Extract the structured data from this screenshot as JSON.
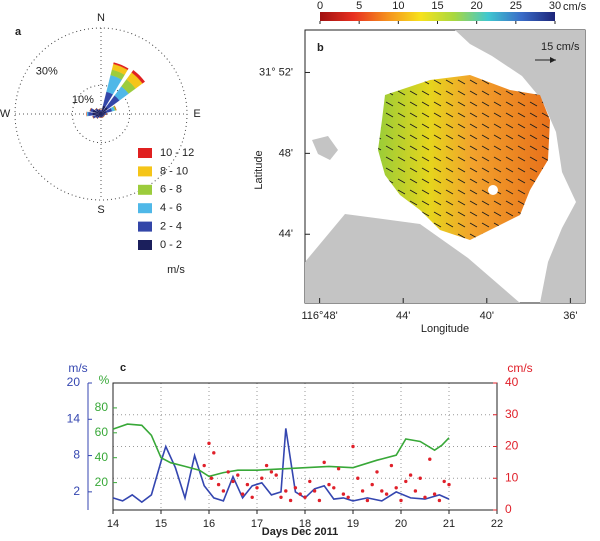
{
  "chart_data": [
    {
      "type": "windrose",
      "title": "a",
      "categories": [
        "N",
        null,
        null,
        null,
        "E",
        null,
        null,
        null,
        "S",
        null,
        null,
        null,
        "W",
        null,
        null,
        null
      ],
      "rlim": [
        0,
        30
      ],
      "rticks": [
        {
          "value": 10,
          "label": "10%"
        },
        {
          "value": 30,
          "label": "30%"
        }
      ],
      "legend_title": "m/s",
      "series": [
        {
          "name": "0 - 2",
          "color": "#1b1f5c",
          "values": [
            1,
            3,
            3,
            2,
            1.5,
            1,
            1,
            1,
            1,
            1,
            1.5,
            2,
            3,
            3,
            2,
            1.5
          ]
        },
        {
          "name": "2 - 4",
          "color": "#3346a8",
          "values": [
            0.5,
            5,
            5,
            2,
            0.5,
            0.3,
            0.3,
            0.3,
            0.3,
            0.3,
            0.5,
            1,
            1.5,
            1,
            0.5,
            0.3
          ]
        },
        {
          "name": "4 - 6",
          "color": "#4fb8e8",
          "values": [
            0,
            6,
            4,
            1,
            0,
            0,
            0,
            0,
            0,
            0,
            0,
            0,
            0.5,
            0,
            0,
            0
          ]
        },
        {
          "name": "6 - 8",
          "color": "#9ccc3c",
          "values": [
            0,
            2,
            3,
            0.5,
            0,
            0,
            0,
            0,
            0,
            0,
            0,
            0,
            0,
            0,
            0,
            0
          ]
        },
        {
          "name": "8 - 10",
          "color": "#f5c518",
          "values": [
            0,
            2,
            3,
            0,
            0,
            0,
            0,
            0,
            0,
            0,
            0,
            0,
            0,
            0,
            0,
            0
          ]
        },
        {
          "name": "10 - 12",
          "color": "#e02020",
          "values": [
            0,
            0.5,
            1,
            0,
            0,
            0,
            0,
            0,
            0,
            0,
            0,
            0,
            0,
            0,
            0,
            0
          ]
        }
      ]
    },
    {
      "type": "map",
      "title": "b",
      "xlabel": "Longitude",
      "ylabel": "Latitude",
      "xlim": [
        48.7,
        35.3
      ],
      "xticks": [
        {
          "value": 48,
          "label": "116°48'"
        },
        {
          "value": 44,
          "label": "44'"
        },
        {
          "value": 40,
          "label": "40'"
        },
        {
          "value": 36,
          "label": "36'"
        }
      ],
      "ylim": [
        40.6,
        54.1
      ],
      "yticks": [
        {
          "value": 52,
          "label": "31° 52'"
        },
        {
          "value": 48,
          "label": "48'"
        },
        {
          "value": 44,
          "label": "44'"
        }
      ],
      "colorbar": {
        "label": "cm/s",
        "lim": [
          0,
          30
        ],
        "ticks": [
          0,
          5,
          10,
          15,
          20,
          25,
          30
        ],
        "colors": [
          "#a01010",
          "#e83020",
          "#f5901e",
          "#f7e21c",
          "#a8d840",
          "#40c8d0",
          "#3a6cc8",
          "#1c2478"
        ]
      },
      "scale_label": "15 cm/s"
    },
    {
      "type": "line",
      "title": "c",
      "xlabel": "Days Dec 2011",
      "xlim": [
        14,
        22
      ],
      "xticks": [
        14,
        15,
        16,
        17,
        18,
        19,
        20,
        21,
        22
      ],
      "ylim": [
        -1,
        20
      ],
      "yticks": [
        2,
        8,
        14,
        20
      ],
      "ylabel": "m/s",
      "y3lim": [
        -2,
        100
      ],
      "y3ticks": [
        20,
        40,
        60,
        80
      ],
      "y3label": "%",
      "y2lim": [
        0,
        40
      ],
      "y2ticks": [
        0,
        10,
        20,
        30,
        40
      ],
      "y2label": "cm/s",
      "grid": true,
      "series": [
        {
          "axis": "y",
          "kind": "line",
          "color": "#3446b0",
          "x": [
            14,
            14.2,
            14.4,
            14.6,
            14.8,
            15,
            15.1,
            15.3,
            15.5,
            15.7,
            15.9,
            16.1,
            16.3,
            16.5,
            16.7,
            16.9,
            17.1,
            17.3,
            17.5,
            17.6,
            17.8,
            18,
            18.2,
            18.4,
            18.6,
            18.8,
            19,
            19.3,
            19.6,
            19.9,
            20.2,
            20.5,
            20.8,
            21
          ],
          "values": [
            1,
            0.5,
            1.5,
            0.3,
            1.5,
            7,
            9.5,
            6,
            1,
            8,
            3,
            1,
            0.5,
            4.5,
            1,
            3,
            3.5,
            1.5,
            2,
            12.5,
            2,
            1,
            2.5,
            3,
            0.8,
            1,
            0.5,
            1,
            0.5,
            2,
            1,
            0.8,
            1.5,
            0.8
          ]
        },
        {
          "axis": "y3",
          "kind": "line",
          "color": "#38a838",
          "x": [
            14,
            14.3,
            14.6,
            14.8,
            15,
            15.2,
            15.5,
            15.8,
            16,
            16.3,
            16.6,
            17,
            17.5,
            18,
            18.5,
            19,
            19.5,
            19.9,
            20.1,
            20.4,
            20.7,
            20.85,
            21
          ],
          "values": [
            63,
            67,
            66,
            58,
            40,
            36,
            33,
            30,
            25,
            28,
            30,
            30,
            31,
            32,
            33,
            32,
            38,
            42,
            55,
            53,
            46,
            50,
            56
          ]
        },
        {
          "axis": "y2",
          "kind": "scatter",
          "color": "#e0202a",
          "x": [
            15.9,
            16.0,
            16.05,
            16.1,
            16.2,
            16.3,
            16.4,
            16.5,
            16.6,
            16.7,
            16.8,
            16.9,
            17.0,
            17.1,
            17.2,
            17.3,
            17.4,
            17.5,
            17.6,
            17.7,
            17.8,
            17.9,
            18.0,
            18.1,
            18.2,
            18.3,
            18.4,
            18.5,
            18.6,
            18.7,
            18.8,
            18.9,
            19.0,
            19.1,
            19.2,
            19.3,
            19.4,
            19.5,
            19.6,
            19.7,
            19.8,
            19.9,
            20.0,
            20.1,
            20.2,
            20.3,
            20.4,
            20.5,
            20.6,
            20.7,
            20.8,
            20.9,
            21.0
          ],
          "values": [
            14,
            21,
            10,
            18,
            8,
            6,
            12,
            9,
            11,
            5,
            8,
            4,
            7,
            10,
            14,
            12,
            11,
            4,
            6,
            3,
            7,
            5,
            4,
            9,
            6,
            3,
            15,
            8,
            7,
            13,
            5,
            4,
            20,
            10,
            6,
            3,
            8,
            12,
            6,
            5,
            14,
            7,
            3,
            9,
            11,
            6,
            10,
            4,
            16,
            5,
            3,
            9,
            8
          ]
        }
      ]
    }
  ]
}
